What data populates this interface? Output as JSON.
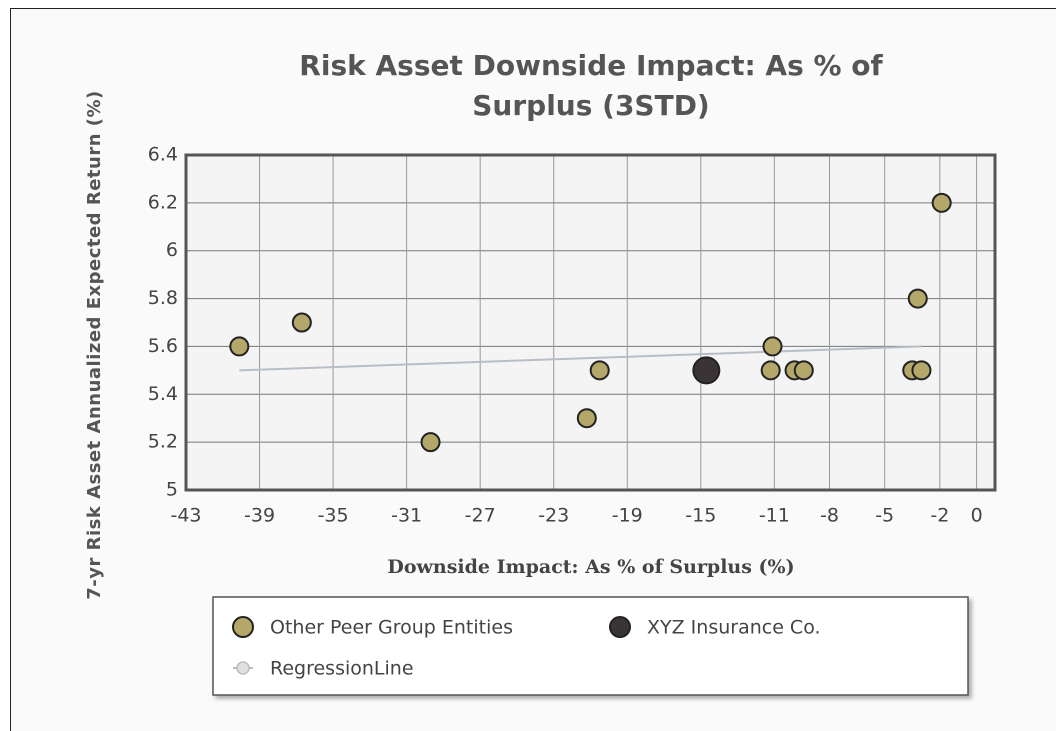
{
  "chart_data": {
    "type": "scatter",
    "title": "Risk Asset Downside Impact: As % of Surplus (3STD)",
    "x_label": "Downside Impact: As % of Surplus (%)",
    "y_label": "7-yr Risk Asset Annualized Expected Return (%)",
    "xlim": [
      -43,
      1
    ],
    "xticks": [
      -43,
      -39,
      -35,
      -31,
      -27,
      -23,
      -19,
      -15,
      -11,
      -8,
      -5,
      -2,
      0
    ],
    "ylim": [
      5,
      6.4
    ],
    "yticks": [
      5,
      5.2,
      5.4,
      5.6,
      5.8,
      6,
      6.2,
      6.4
    ],
    "grid": true,
    "series": [
      {
        "name": "Other Peer Group Entities",
        "color": "#b3a76a",
        "x": [
          -40.1,
          -36.7,
          -29.7,
          -21.2,
          -20.5,
          -11.1,
          -11.2,
          -9.9,
          -9.4,
          -3.5,
          -3.0,
          -3.2,
          -1.9
        ],
        "values": [
          5.6,
          5.7,
          5.2,
          5.3,
          5.5,
          5.6,
          5.5,
          5.5,
          5.5,
          5.5,
          5.5,
          5.8,
          6.2
        ]
      },
      {
        "name": "XYZ Insurance Co.",
        "color": "#3b3437",
        "x": [
          -14.7
        ],
        "values": [
          5.5
        ]
      },
      {
        "name": "RegressionLine",
        "type": "line",
        "color": "#b8bec6",
        "x": [
          -40.1,
          -3.0
        ],
        "values": [
          5.5,
          5.6
        ]
      }
    ]
  }
}
